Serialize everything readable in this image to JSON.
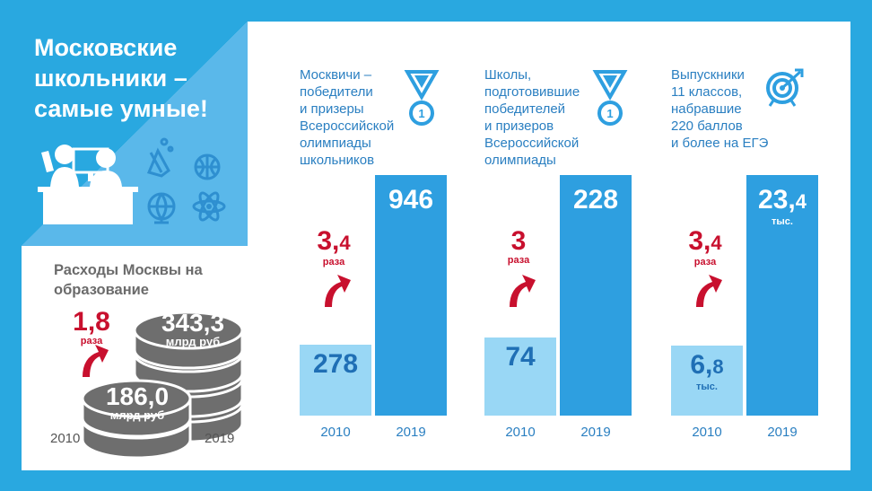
{
  "title_lines": [
    "Московские",
    "школьники –",
    "самые умные!"
  ],
  "spending": {
    "title_lines": [
      "Расходы Москвы на",
      "образование"
    ],
    "multiplier": "1,8",
    "multiplier_unit": "раза",
    "value_2010": "186,0",
    "value_2019": "343,3",
    "unit": "млрд руб",
    "year_2010": "2010",
    "year_2019": "2019"
  },
  "colors": {
    "background": "#29a8e0",
    "bar_light": "#99d7f5",
    "bar_dark": "#2e9fe0",
    "accent_red": "#c8102e",
    "coin_gray": "#6e6e6e"
  },
  "chart_data": [
    {
      "type": "bar",
      "title_lines": [
        "Москвичи –",
        "победители",
        "и призеры",
        "Всероссийской",
        "олимпиады",
        "школьников"
      ],
      "categories": [
        "2010",
        "2019"
      ],
      "values": [
        278,
        946
      ],
      "labels": [
        "278",
        "946"
      ],
      "multiplier": "3,4",
      "multiplier_unit": "раза",
      "icon": "medal-icon"
    },
    {
      "type": "bar",
      "title_lines": [
        "Школы,",
        "подготовившие",
        "победителей",
        "и призеров",
        "Всероссийской",
        "олимпиады"
      ],
      "categories": [
        "2010",
        "2019"
      ],
      "values": [
        74,
        228
      ],
      "labels": [
        "74",
        "228"
      ],
      "multiplier": "3",
      "multiplier_unit": "раза",
      "icon": "medal-icon"
    },
    {
      "type": "bar",
      "title_lines": [
        "Выпускники",
        "11 классов,",
        "набравшие",
        "220 баллов",
        "и более на ЕГЭ"
      ],
      "categories": [
        "2010",
        "2019"
      ],
      "values": [
        6.8,
        23.4
      ],
      "labels": [
        "6,8",
        "23,4"
      ],
      "value_unit": "тыс.",
      "multiplier": "3,4",
      "multiplier_unit": "раза",
      "icon": "target-icon"
    }
  ]
}
